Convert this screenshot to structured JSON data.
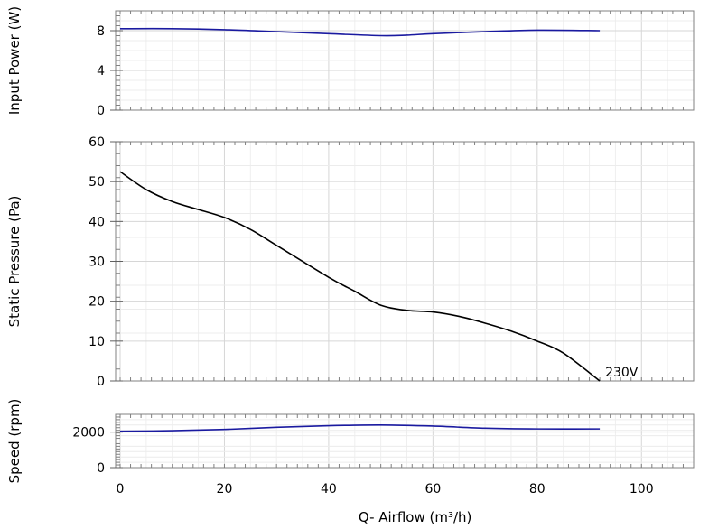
{
  "chart_data": [
    {
      "id": "input-power",
      "type": "line",
      "ylabel": "Input Power (W)",
      "xlabel": "",
      "xlim": [
        0,
        110
      ],
      "ylim": [
        0,
        10
      ],
      "yticks": [
        0,
        4,
        8
      ],
      "grid": true,
      "series": [
        {
          "color": "#1a1aa0",
          "x": [
            0,
            10,
            20,
            30,
            40,
            50,
            55,
            60,
            70,
            80,
            92
          ],
          "y": [
            8.2,
            8.2,
            8.1,
            7.9,
            7.7,
            7.5,
            7.55,
            7.7,
            7.9,
            8.05,
            8.0
          ]
        }
      ]
    },
    {
      "id": "static-pressure",
      "type": "line",
      "ylabel": "Static Pressure (Pa)",
      "xlabel": "",
      "xlim": [
        0,
        110
      ],
      "ylim": [
        0,
        60
      ],
      "yticks": [
        0,
        10,
        20,
        30,
        40,
        50,
        60
      ],
      "grid": true,
      "series": [
        {
          "name": "230V",
          "color": "#000000",
          "x": [
            0,
            5,
            10,
            15,
            20,
            25,
            30,
            40,
            45,
            50,
            55,
            60,
            65,
            70,
            75,
            80,
            85,
            92
          ],
          "y": [
            52.5,
            48,
            45,
            43,
            41,
            38,
            34,
            26,
            22.5,
            19,
            17.7,
            17.3,
            16.2,
            14.5,
            12.5,
            10,
            7,
            0
          ]
        }
      ]
    },
    {
      "id": "speed",
      "type": "line",
      "ylabel": "Speed (rpm)",
      "xlabel": "Q- Airflow (m³/h)",
      "xlim": [
        0,
        110
      ],
      "ylim": [
        0,
        3000
      ],
      "yticks": [
        0,
        2000
      ],
      "xticks": [
        0,
        20,
        40,
        60,
        80,
        100
      ],
      "grid": true,
      "series": [
        {
          "color": "#1a1aa0",
          "x": [
            0,
            10,
            20,
            30,
            40,
            50,
            60,
            70,
            80,
            92
          ],
          "y": [
            2050,
            2080,
            2150,
            2270,
            2360,
            2400,
            2340,
            2220,
            2180,
            2180
          ]
        }
      ]
    }
  ]
}
